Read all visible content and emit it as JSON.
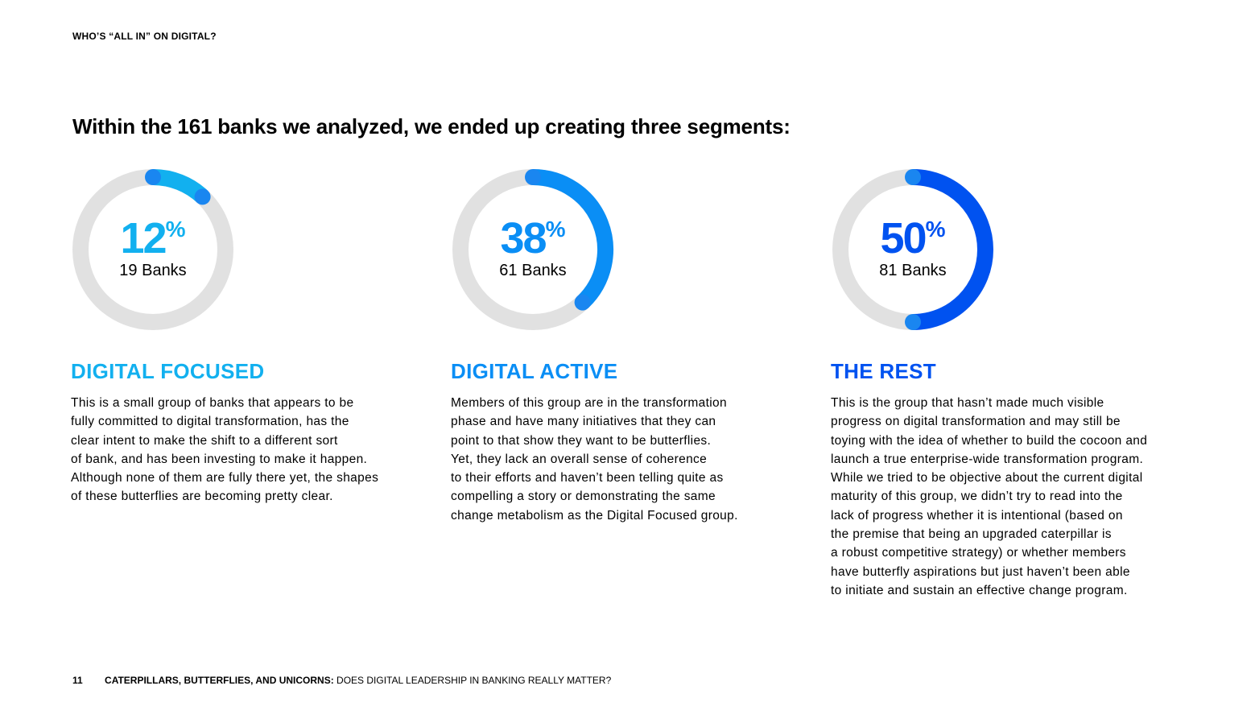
{
  "header": {
    "section_label": "WHO’S “ALL IN” ON DIGITAL?"
  },
  "headline": "Within the 161 banks we analyzed, we ended up creating three segments:",
  "segments": [
    {
      "percent": 12,
      "percent_text": "12",
      "percent_sign": "%",
      "banks": "19 Banks",
      "title": "DIGITAL FOCUSED",
      "color": "#12b0ef",
      "body": "This is a small group of banks that appears to be\nfully committed to digital transformation, has the\nclear intent to make the shift to a different sort\nof bank, and has been investing to make it happen.\nAlthough none of them are fully there yet, the shapes\nof these butterflies are becoming pretty clear."
    },
    {
      "percent": 38,
      "percent_text": "38",
      "percent_sign": "%",
      "banks": "61 Banks",
      "title": "DIGITAL ACTIVE",
      "color": "#0a8ef5",
      "body": "Members of this group are in the transformation\nphase and have many initiatives that they can\npoint to that show they want to be butterflies.\nYet, they lack an overall sense of coherence\nto their efforts and haven’t been telling quite as\ncompelling a story or demonstrating the same\nchange metabolism as the Digital Focused group."
    },
    {
      "percent": 50,
      "percent_text": "50",
      "percent_sign": "%",
      "banks": "81 Banks",
      "title": "THE REST",
      "color": "#0052f0",
      "body": "This is the group that hasn’t made much visible\nprogress on digital transformation and may still be\ntoying with the idea of whether to build the cocoon and\nlaunch a true enterprise-wide transformation program.\nWhile we tried to be objective about the current digital\nmaturity of this group, we didn’t try to read into the\nlack of progress whether it is intentional (based on\nthe premise that being an upgraded caterpillar is\na robust competitive strategy) or whether members\nhave butterfly aspirations but just haven’t been able\nto initiate and sustain an effective change program."
    }
  ],
  "colors": {
    "track": "#e1e1e1",
    "start_cap": "#1a86f0"
  },
  "footer": {
    "page_number": "11",
    "title_bold": "CATERPILLARS, BUTTERFLIES, AND UNICORNS:",
    "title_rest": " DOES DIGITAL LEADERSHIP IN BANKING REALLY MATTER?"
  }
}
